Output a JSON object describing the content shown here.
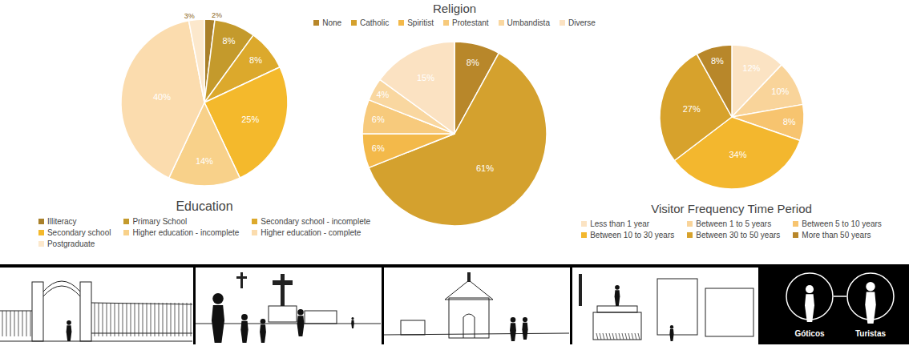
{
  "chart_data": [
    {
      "type": "pie",
      "title": "Education",
      "categories": [
        "Illiteracy",
        "Primary School",
        "Secondary school - incomplete",
        "Secondary school",
        "Higher education - incomplete",
        "Higher education - complete",
        "Postgraduate"
      ],
      "values": [
        2,
        8,
        8,
        25,
        14,
        40,
        3
      ],
      "value_labels": [
        "2%",
        "8%",
        "8%",
        "25%",
        "14%",
        "40%",
        "3%"
      ],
      "colors": [
        "#a9802a",
        "#c49a2c",
        "#dca92c",
        "#f4b92c",
        "#f8d18a",
        "#fbdcae",
        "#fce8cc"
      ],
      "data_labels": true,
      "legend": "bottom"
    },
    {
      "type": "pie",
      "title": "Religion",
      "categories": [
        "None",
        "Catholic",
        "Spiritist",
        "Protestant",
        "Umbandista",
        "Diverse"
      ],
      "values": [
        8,
        61,
        6,
        6,
        4,
        15
      ],
      "value_labels": [
        "8%",
        "61%",
        "6%",
        "6%",
        "4%",
        "15%"
      ],
      "colors": [
        "#b8872a",
        "#d4a12e",
        "#f3b94a",
        "#f7ca7c",
        "#f9d7a0",
        "#fbe2c2"
      ],
      "data_labels": true,
      "legend": "top"
    },
    {
      "type": "pie",
      "title": "Visitor Frequency Time Period",
      "categories": [
        "Less than 1 year",
        "Between 1 to 5 years",
        "Between 5 to 10 years",
        "Between 10 to 30 years",
        "Between 30 to 50 years",
        "More than 50 years"
      ],
      "values": [
        12,
        10,
        8,
        34,
        27,
        8
      ],
      "value_labels": [
        "12%",
        "10%",
        "8%",
        "34%",
        "27%",
        "8%"
      ],
      "colors": [
        "#fbe3c3",
        "#f9d49a",
        "#f7c46f",
        "#f3b72e",
        "#d7a22c",
        "#b8872a"
      ],
      "data_labels": true,
      "legend": "bottom"
    }
  ],
  "illustration_strip": {
    "labels": [
      "Góticos",
      "Turistas"
    ]
  }
}
